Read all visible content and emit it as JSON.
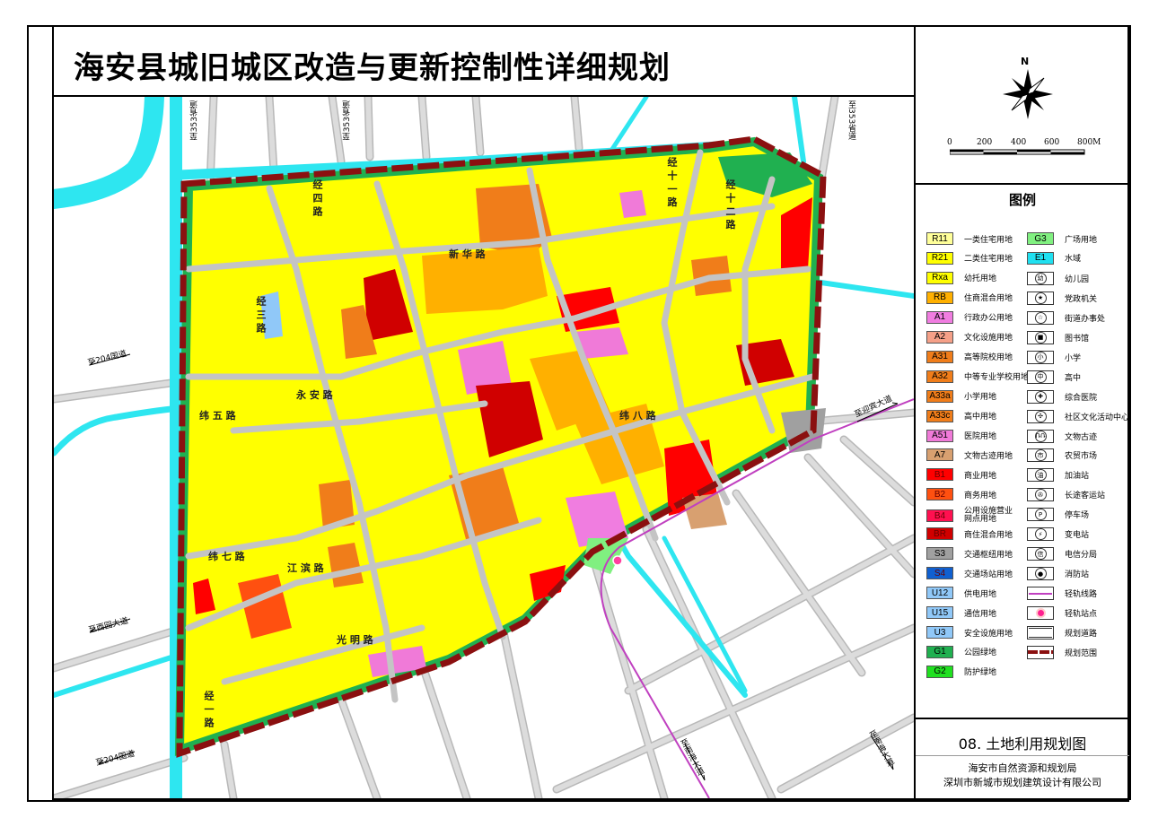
{
  "title": "海安县城旧城区改造与更新控制性详细规划",
  "north_label": "N",
  "scale": {
    "labels": [
      "0",
      "200",
      "400",
      "600",
      "800M"
    ]
  },
  "legend": {
    "title": "图例",
    "land_use": [
      {
        "code": "R11",
        "label": "一类住宅用地",
        "color": "#ffff99"
      },
      {
        "code": "R21",
        "label": "二类住宅用地",
        "color": "#ffff00"
      },
      {
        "code": "Rxa",
        "label": "幼托用地",
        "color": "#ffff00"
      },
      {
        "code": "RB",
        "label": "住商混合用地",
        "color": "#ffb000"
      },
      {
        "code": "A1",
        "label": "行政办公用地",
        "color": "#f07de0"
      },
      {
        "code": "A2",
        "label": "文化设施用地",
        "color": "#f5a088"
      },
      {
        "code": "A31",
        "label": "高等院校用地",
        "color": "#f07d1a"
      },
      {
        "code": "A32",
        "label": "中等专业学校用地",
        "color": "#f07d1a"
      },
      {
        "code": "A33a",
        "label": "小学用地",
        "color": "#f07d1a"
      },
      {
        "code": "A33c",
        "label": "高中用地",
        "color": "#f07d1a"
      },
      {
        "code": "A51",
        "label": "医院用地",
        "color": "#f07ad8"
      },
      {
        "code": "A7",
        "label": "文物古迹用地",
        "color": "#d8a070"
      },
      {
        "code": "B1",
        "label": "商业用地",
        "color": "#ff0000"
      },
      {
        "code": "B2",
        "label": "商务用地",
        "color": "#ff5010"
      },
      {
        "code": "B4",
        "label": "公用设施营业网点用地",
        "color": "#ff1050"
      },
      {
        "code": "BR",
        "label": "商住混合用地",
        "color": "#d00000"
      },
      {
        "code": "S3",
        "label": "交通枢纽用地",
        "color": "#a0a0a0"
      },
      {
        "code": "S4",
        "label": "交通场站用地",
        "color": "#1060d0"
      },
      {
        "code": "U12",
        "label": "供电用地",
        "color": "#90c8f8"
      },
      {
        "code": "U15",
        "label": "通信用地",
        "color": "#90c8f8"
      },
      {
        "code": "U3",
        "label": "安全设施用地",
        "color": "#90c8f8"
      },
      {
        "code": "G1",
        "label": "公园绿地",
        "color": "#20b050"
      },
      {
        "code": "G2",
        "label": "防护绿地",
        "color": "#20e020"
      }
    ],
    "facilities": [
      {
        "code": "G3",
        "label": "广场用地",
        "color": "#80f080",
        "kind": "swatch"
      },
      {
        "code": "E1",
        "label": "水域",
        "color": "#20e0f0",
        "kind": "swatch"
      },
      {
        "icon": "kindergarten-icon",
        "glyph": "幼",
        "label": "幼儿园"
      },
      {
        "icon": "party-government-icon",
        "glyph": "★",
        "label": "党政机关"
      },
      {
        "icon": "subdistrict-office-icon",
        "glyph": "☆",
        "label": "街道办事处"
      },
      {
        "icon": "library-icon",
        "glyph": "■",
        "label": "图书馆"
      },
      {
        "icon": "primary-school-icon",
        "glyph": "小",
        "label": "小学"
      },
      {
        "icon": "high-school-icon",
        "glyph": "中",
        "label": "高中"
      },
      {
        "icon": "hospital-icon",
        "glyph": "✚",
        "label": "综合医院"
      },
      {
        "icon": "community-center-icon",
        "glyph": "✣",
        "label": "社区文化活动中心"
      },
      {
        "icon": "heritage-icon",
        "glyph": "ՌՌ",
        "label": "文物古迹"
      },
      {
        "icon": "market-icon",
        "glyph": "市",
        "label": "农贸市场"
      },
      {
        "icon": "gas-station-icon",
        "glyph": "油",
        "label": "加油站"
      },
      {
        "icon": "bus-station-icon",
        "glyph": "✇",
        "label": "长途客运站"
      },
      {
        "icon": "parking-icon",
        "glyph": "P",
        "label": "停车场"
      },
      {
        "icon": "substation-icon",
        "glyph": "⚡",
        "label": "变电站"
      },
      {
        "icon": "telecom-icon",
        "glyph": "信",
        "label": "电信分局"
      },
      {
        "icon": "fire-station-icon",
        "glyph": "●",
        "label": "消防站"
      },
      {
        "icon": "light-rail-line-icon",
        "kind": "rail",
        "label": "轻轨线路"
      },
      {
        "icon": "light-rail-station-icon",
        "kind": "station",
        "label": "轻轨站点"
      },
      {
        "icon": "planned-road-icon",
        "kind": "road",
        "label": "规划道路"
      },
      {
        "icon": "planning-boundary-icon",
        "kind": "boundary",
        "label": "规划范围"
      }
    ]
  },
  "sheet_title": "08. 土地利用规划图",
  "orgs": [
    "海安市自然资源和规划局",
    "深圳市新城市规划建筑设计有限公司"
  ],
  "map": {
    "directions": {
      "to_353_a": "至353省道",
      "to_353_b": "至353省道",
      "to_353_c": "至353省道",
      "to_204_a": "至204国道",
      "to_204_b": "至204国道",
      "to_xiyuan": "至西园大道",
      "to_yingbin": "至迎宾大道",
      "to_nanhai_a": "至南海大道",
      "to_nanhai_b": "至南海大道"
    },
    "streets": {
      "wei5": "纬 五 路",
      "jing4": "经 四 路",
      "yongan": "永 安 路",
      "xinhua": "新 华 路",
      "jing12": "经 十 二 路",
      "jing11": "经 十 一 路",
      "wei8": "纬 八 路",
      "guangming": "光 明 路",
      "jing1": "经 一 路",
      "wei7": "纬 七 路",
      "jiangbin": "江 滨 路",
      "jingsan": "经 三 路"
    },
    "colors": {
      "water": "#2ee6f0",
      "road": "#cfcfcf",
      "boundary": "#8b1010",
      "rail": "#c040c0"
    }
  }
}
